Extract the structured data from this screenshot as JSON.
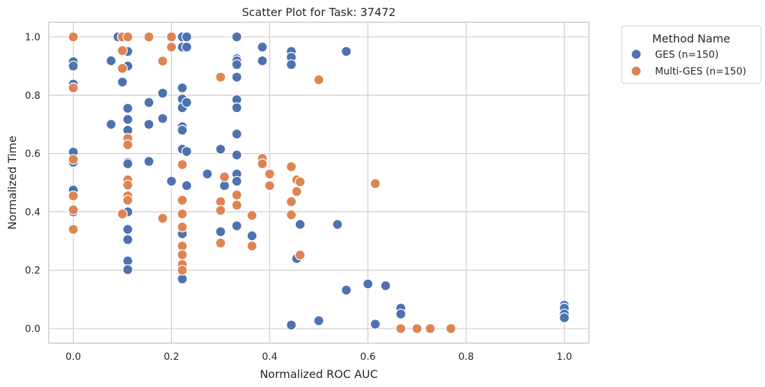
{
  "chart_data": {
    "type": "scatter",
    "title": "Scatter Plot for Task: 37472",
    "xlabel": "Normalized ROC AUC",
    "ylabel": "Normalized Time",
    "xlim": [
      -0.05,
      1.05
    ],
    "ylim": [
      -0.05,
      1.05
    ],
    "xticks": [
      0.0,
      0.2,
      0.4,
      0.6,
      0.8,
      1.0
    ],
    "yticks": [
      0.0,
      0.2,
      0.4,
      0.6,
      0.8,
      1.0
    ],
    "xtick_labels": [
      "0.0",
      "0.2",
      "0.4",
      "0.6",
      "0.8",
      "1.0"
    ],
    "ytick_labels": [
      "0.0",
      "0.2",
      "0.4",
      "0.6",
      "0.8",
      "1.0"
    ],
    "grid": true,
    "legend": {
      "title": "Method Name",
      "placement": "outside-upper-right",
      "entries": [
        "GES (n=150)",
        "Multi-GES (n=150)"
      ]
    },
    "series": [
      {
        "name": "GES (n=150)",
        "color": "#4c72b0",
        "points": [
          [
            0.0,
            0.915
          ],
          [
            0.0,
            0.9
          ],
          [
            0.0,
            0.838
          ],
          [
            0.0,
            0.605
          ],
          [
            0.0,
            0.57
          ],
          [
            0.0,
            0.475
          ],
          [
            0.0,
            0.4
          ],
          [
            0.077,
            0.7
          ],
          [
            0.077,
            0.918
          ],
          [
            0.091,
            1.0
          ],
          [
            0.1,
            1.0
          ],
          [
            0.1,
            0.845
          ],
          [
            0.105,
            1.0
          ],
          [
            0.111,
            0.95
          ],
          [
            0.111,
            0.9
          ],
          [
            0.111,
            0.755
          ],
          [
            0.111,
            0.717
          ],
          [
            0.111,
            0.68
          ],
          [
            0.111,
            0.57
          ],
          [
            0.111,
            0.565
          ],
          [
            0.111,
            0.5
          ],
          [
            0.111,
            0.49
          ],
          [
            0.111,
            0.4
          ],
          [
            0.111,
            0.34
          ],
          [
            0.111,
            0.305
          ],
          [
            0.111,
            0.232
          ],
          [
            0.111,
            0.202
          ],
          [
            0.154,
            0.775
          ],
          [
            0.154,
            0.7
          ],
          [
            0.154,
            0.573
          ],
          [
            0.182,
            0.807
          ],
          [
            0.182,
            0.72
          ],
          [
            0.2,
            0.505
          ],
          [
            0.222,
            1.0
          ],
          [
            0.222,
            0.965
          ],
          [
            0.222,
            0.825
          ],
          [
            0.222,
            0.787
          ],
          [
            0.222,
            0.757
          ],
          [
            0.222,
            0.692
          ],
          [
            0.222,
            0.68
          ],
          [
            0.222,
            0.615
          ],
          [
            0.222,
            0.325
          ],
          [
            0.222,
            0.17
          ],
          [
            0.231,
            1.0
          ],
          [
            0.231,
            0.965
          ],
          [
            0.231,
            0.775
          ],
          [
            0.231,
            0.607
          ],
          [
            0.231,
            0.49
          ],
          [
            0.273,
            0.53
          ],
          [
            0.3,
            0.615
          ],
          [
            0.3,
            0.332
          ],
          [
            0.308,
            0.49
          ],
          [
            0.333,
            1.0
          ],
          [
            0.333,
            0.925
          ],
          [
            0.333,
            0.918
          ],
          [
            0.333,
            0.905
          ],
          [
            0.333,
            0.862
          ],
          [
            0.333,
            0.785
          ],
          [
            0.333,
            0.757
          ],
          [
            0.333,
            0.667
          ],
          [
            0.333,
            0.595
          ],
          [
            0.333,
            0.53
          ],
          [
            0.333,
            0.505
          ],
          [
            0.333,
            0.352
          ],
          [
            0.364,
            0.318
          ],
          [
            0.385,
            0.965
          ],
          [
            0.385,
            0.918
          ],
          [
            0.444,
            0.95
          ],
          [
            0.444,
            0.93
          ],
          [
            0.444,
            0.905
          ],
          [
            0.444,
            0.015
          ],
          [
            0.444,
            0.012
          ],
          [
            0.455,
            0.24
          ],
          [
            0.462,
            0.357
          ],
          [
            0.5,
            0.027
          ],
          [
            0.538,
            0.357
          ],
          [
            0.556,
            0.95
          ],
          [
            0.556,
            0.132
          ],
          [
            0.6,
            0.153
          ],
          [
            0.615,
            0.015
          ],
          [
            0.636,
            0.147
          ],
          [
            0.667,
            0.07
          ],
          [
            0.667,
            0.05
          ],
          [
            1.0,
            0.08
          ],
          [
            1.0,
            0.07
          ],
          [
            1.0,
            0.05
          ],
          [
            1.0,
            0.037
          ]
        ]
      },
      {
        "name": "Multi-GES (n=150)",
        "color": "#dd8452",
        "points": [
          [
            0.0,
            1.0
          ],
          [
            0.0,
            0.825
          ],
          [
            0.0,
            0.58
          ],
          [
            0.0,
            0.455
          ],
          [
            0.0,
            0.407
          ],
          [
            0.0,
            0.34
          ],
          [
            0.1,
            1.0
          ],
          [
            0.1,
            0.953
          ],
          [
            0.1,
            0.892
          ],
          [
            0.1,
            0.393
          ],
          [
            0.111,
            1.0
          ],
          [
            0.111,
            0.652
          ],
          [
            0.111,
            0.63
          ],
          [
            0.111,
            0.51
          ],
          [
            0.111,
            0.492
          ],
          [
            0.111,
            0.455
          ],
          [
            0.111,
            0.44
          ],
          [
            0.154,
            1.0
          ],
          [
            0.182,
            0.917
          ],
          [
            0.182,
            0.378
          ],
          [
            0.2,
            1.0
          ],
          [
            0.2,
            0.965
          ],
          [
            0.222,
            0.562
          ],
          [
            0.222,
            0.44
          ],
          [
            0.222,
            0.393
          ],
          [
            0.222,
            0.348
          ],
          [
            0.222,
            0.283
          ],
          [
            0.222,
            0.253
          ],
          [
            0.222,
            0.22
          ],
          [
            0.222,
            0.2
          ],
          [
            0.3,
            0.862
          ],
          [
            0.3,
            0.435
          ],
          [
            0.3,
            0.405
          ],
          [
            0.3,
            0.293
          ],
          [
            0.308,
            0.52
          ],
          [
            0.333,
            0.458
          ],
          [
            0.333,
            0.423
          ],
          [
            0.364,
            0.388
          ],
          [
            0.364,
            0.283
          ],
          [
            0.385,
            0.583
          ],
          [
            0.385,
            0.565
          ],
          [
            0.4,
            0.53
          ],
          [
            0.4,
            0.49
          ],
          [
            0.444,
            0.555
          ],
          [
            0.444,
            0.435
          ],
          [
            0.444,
            0.39
          ],
          [
            0.455,
            0.51
          ],
          [
            0.455,
            0.47
          ],
          [
            0.462,
            0.503
          ],
          [
            0.462,
            0.252
          ],
          [
            0.5,
            0.853
          ],
          [
            0.615,
            0.497
          ],
          [
            0.667,
            0.0
          ],
          [
            0.7,
            0.0
          ],
          [
            0.727,
            0.0
          ],
          [
            0.769,
            0.0
          ]
        ]
      }
    ]
  }
}
